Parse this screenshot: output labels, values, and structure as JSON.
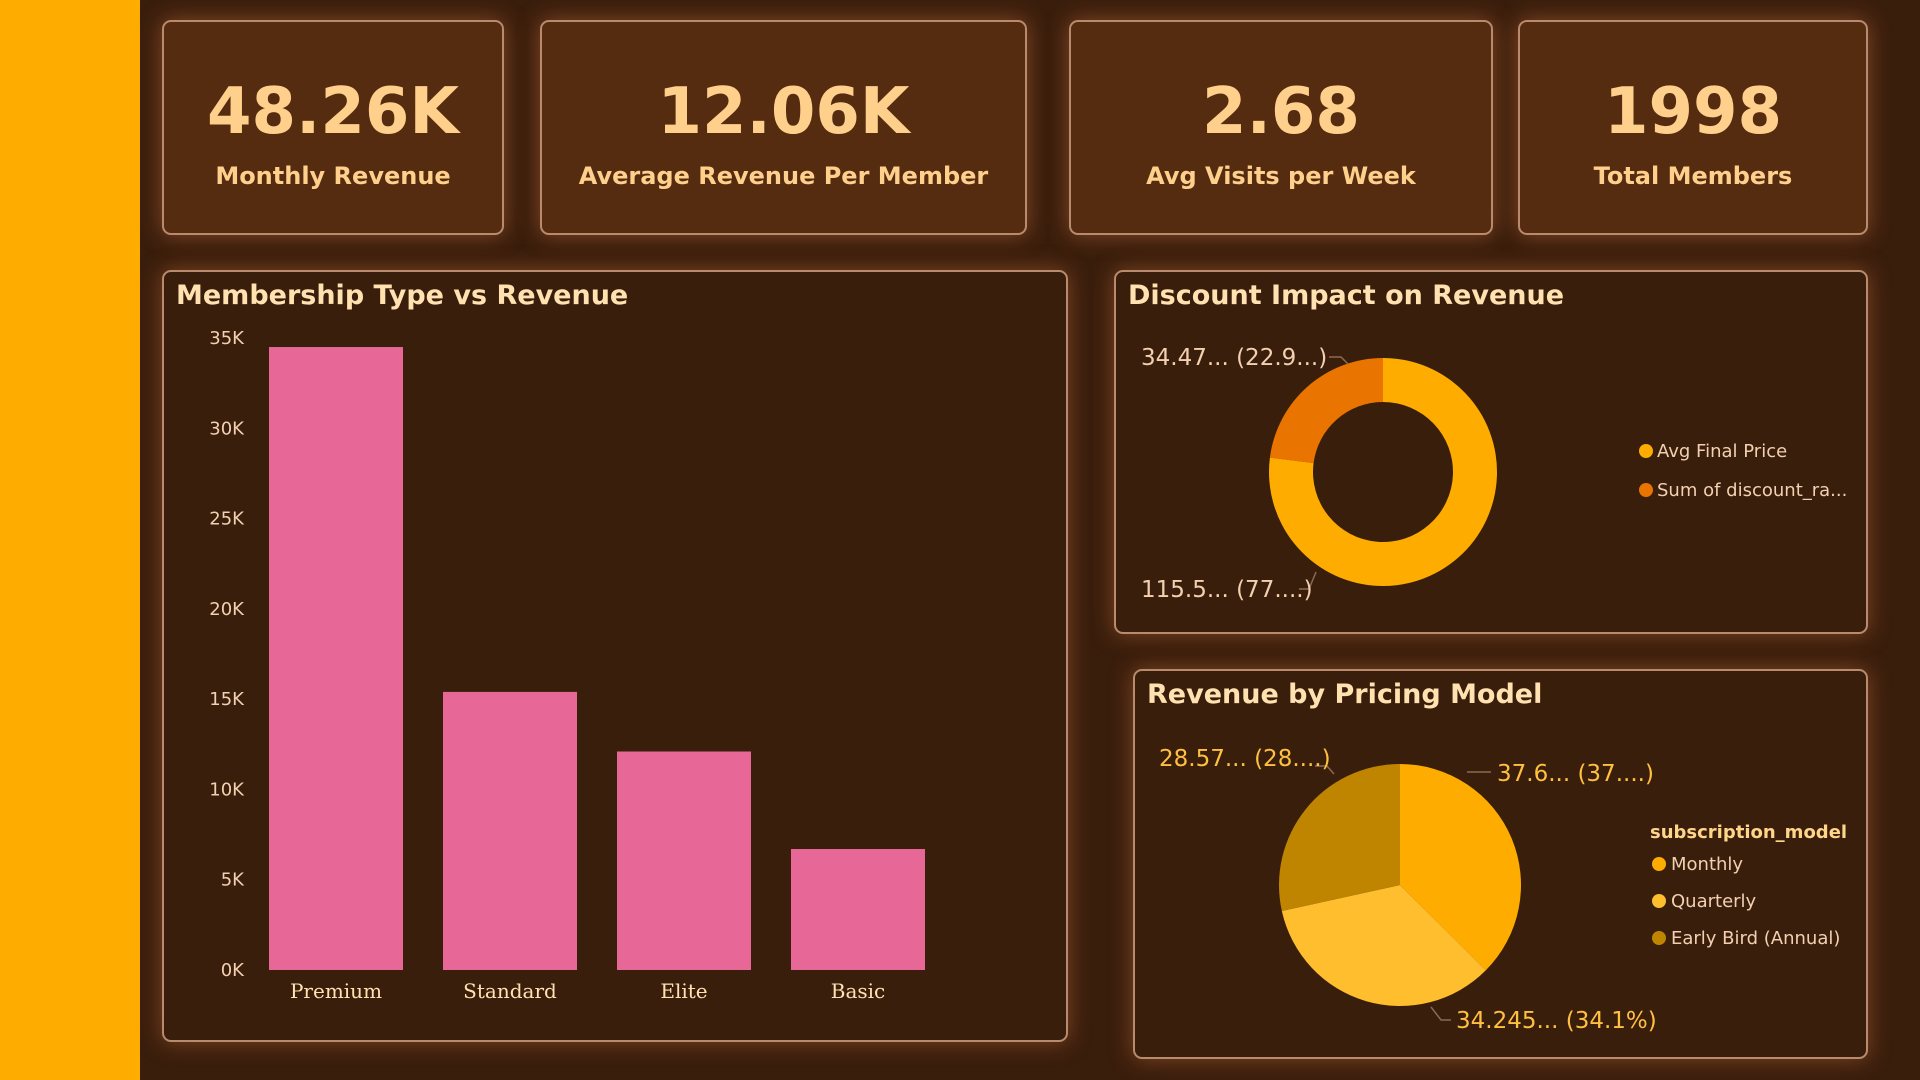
{
  "kpis": [
    {
      "value": "48.26K",
      "label": "Monthly Revenue"
    },
    {
      "value": "12.06K",
      "label": "Average Revenue Per Member"
    },
    {
      "value": "2.68",
      "label": "Avg Visits per Week"
    },
    {
      "value": "1998",
      "label": "Total Members"
    }
  ],
  "colors": {
    "sidebar": "#ffac00",
    "background": "#3a1e0c",
    "bar": "#e76896",
    "donut_main": "#ffac00",
    "donut_secondary": "#ea7400",
    "pie_monthly": "#ffac00",
    "pie_quarterly": "#ffbe2e",
    "pie_early_bird": "#c08500"
  },
  "chart_data": [
    {
      "type": "bar",
      "title": "Membership Type vs Revenue",
      "categories": [
        "Premium",
        "Standard",
        "Elite",
        "Basic"
      ],
      "values": [
        34500,
        15400,
        12100,
        6700
      ],
      "ylim": [
        0,
        35000
      ],
      "yticks": [
        "0K",
        "5K",
        "10K",
        "15K",
        "20K",
        "25K",
        "30K",
        "35K"
      ],
      "grid": false
    },
    {
      "type": "pie",
      "title": "Discount Impact on Revenue",
      "donut": true,
      "slices": [
        {
          "name": "Sum of discount_ra...",
          "value": 34.47,
          "label": "34.47... (22.9...)",
          "color": "#ea7400"
        },
        {
          "name": "Avg Final Price",
          "value": 115.5,
          "label": "115.5... (77....)",
          "color": "#ffac00"
        }
      ],
      "legend_position": "right"
    },
    {
      "type": "pie",
      "title": "Revenue by Pricing Model",
      "legend_title": "subscription_model",
      "slices": [
        {
          "name": "Monthly",
          "value": 37.6,
          "label": "37.6... (37....)",
          "color": "#ffac00"
        },
        {
          "name": "Quarterly",
          "value": 34.245,
          "label": "34.245... (34.1%)",
          "color": "#ffbe2e"
        },
        {
          "name": "Early Bird (Annual)",
          "value": 28.57,
          "label": "28.57... (28....)",
          "color": "#c08500"
        }
      ],
      "legend_position": "right"
    }
  ]
}
